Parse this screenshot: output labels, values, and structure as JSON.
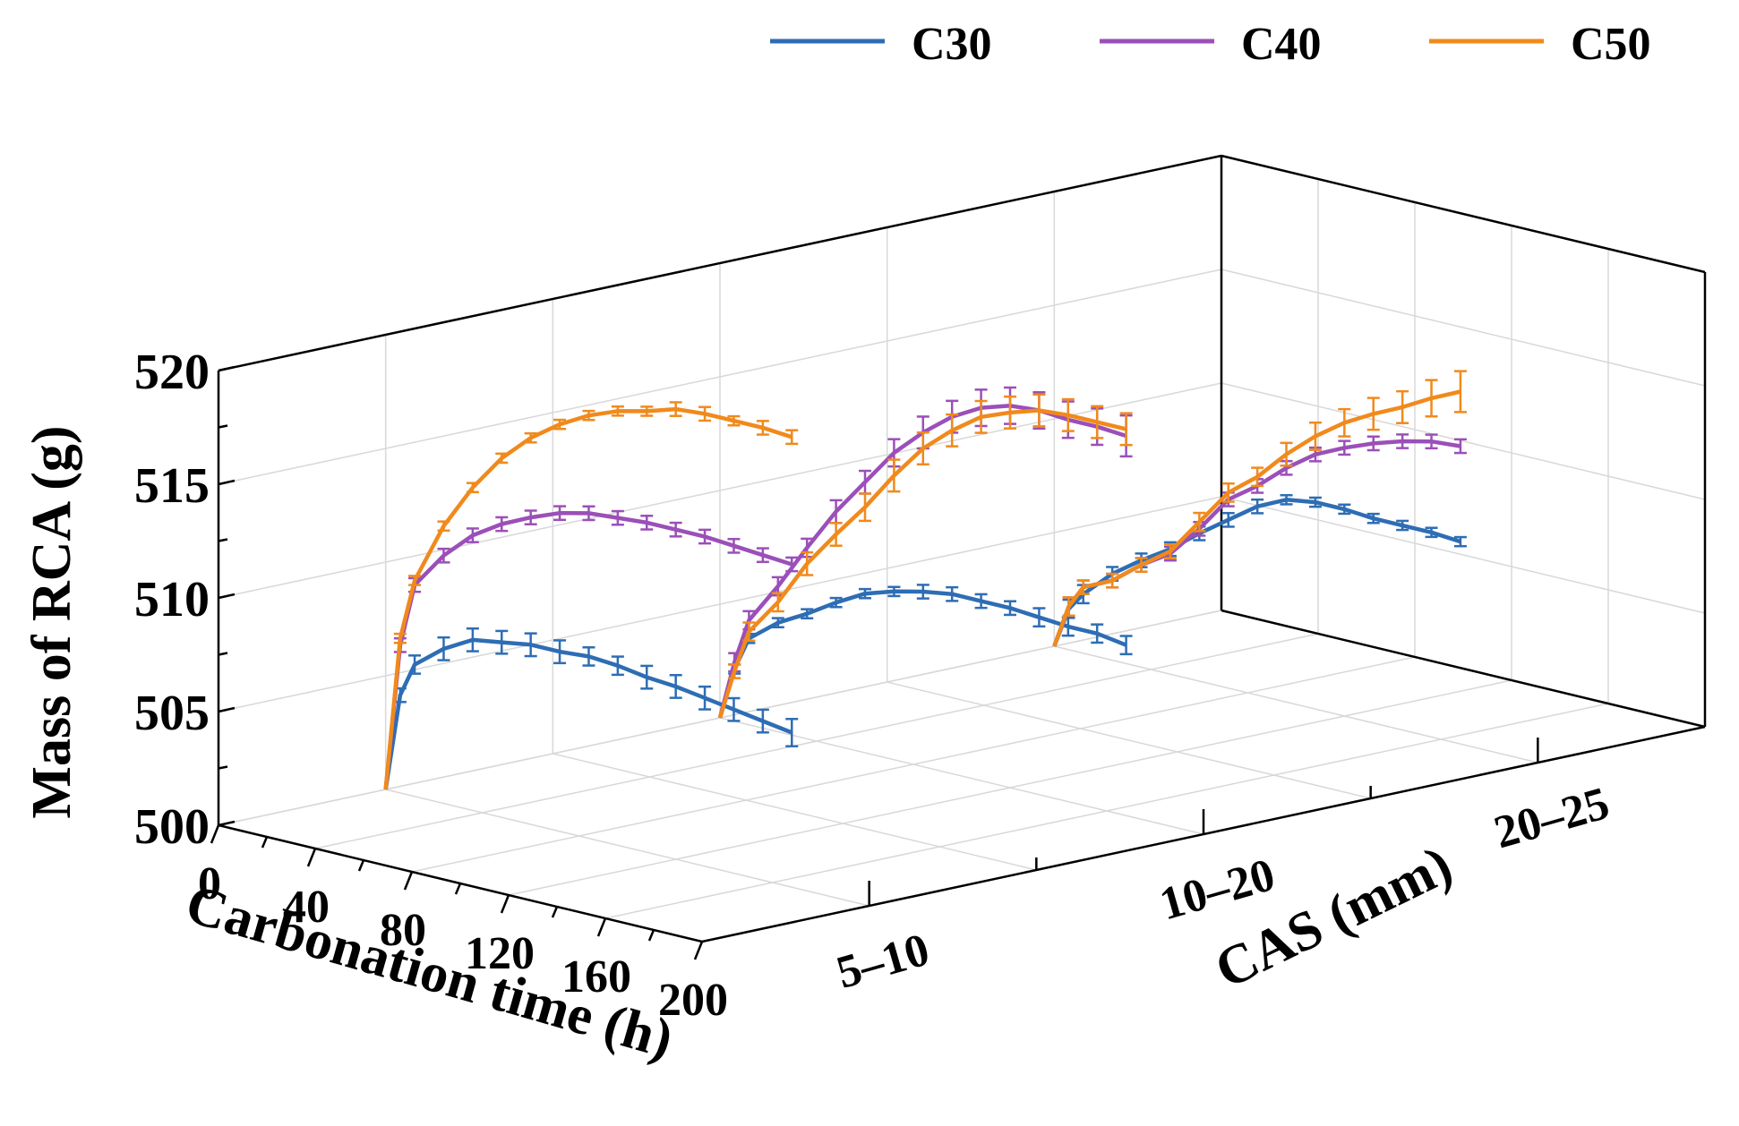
{
  "chart_data": {
    "type": "line",
    "subtype": "3d-line-with-error-bars",
    "title": "",
    "zlabel": "Mass of RCA (g)",
    "xlabel": "Carbonation time (h)",
    "ylabel": "CAS (mm)",
    "zlim": [
      500,
      520
    ],
    "xlim": [
      0,
      200
    ],
    "z_ticks": [
      "500",
      "505",
      "510",
      "515",
      "520"
    ],
    "x_ticks": [
      "0",
      "40",
      "80",
      "120",
      "160",
      "200"
    ],
    "x_tick_values": [
      0,
      40,
      80,
      120,
      160,
      200
    ],
    "categories": [
      "5–10",
      "10–20",
      "20–25"
    ],
    "legend": [
      "C30",
      "C40",
      "C50"
    ],
    "legend_position": "top",
    "colors": {
      "C30": "#2e6db4",
      "C40": "#9b4fb8",
      "C50": "#f08a1c"
    },
    "x": [
      0,
      6,
      12,
      24,
      36,
      48,
      60,
      72,
      84,
      96,
      108,
      120,
      132,
      144,
      156,
      168
    ],
    "groups": [
      {
        "cas": "5–10",
        "series": [
          {
            "name": "C30",
            "values": [
              500.0,
              504.3,
              505.8,
              506.8,
              507.5,
              507.7,
              507.9,
              507.9,
              508.0,
              507.9,
              507.7,
              507.6,
              507.4,
              507.2,
              507.0,
              506.8
            ],
            "errors": [
              0.05,
              0.3,
              0.4,
              0.5,
              0.5,
              0.5,
              0.5,
              0.5,
              0.4,
              0.4,
              0.5,
              0.5,
              0.5,
              0.5,
              0.5,
              0.6
            ]
          },
          {
            "name": "C40",
            "values": [
              500.0,
              506.5,
              509.3,
              510.9,
              512.1,
              512.9,
              513.5,
              514.0,
              514.3,
              514.4,
              514.5,
              514.5,
              514.5,
              514.4,
              514.3,
              514.2
            ],
            "errors": [
              0.05,
              0.3,
              0.3,
              0.3,
              0.3,
              0.3,
              0.3,
              0.3,
              0.3,
              0.3,
              0.3,
              0.3,
              0.3,
              0.3,
              0.3,
              0.3
            ]
          },
          {
            "name": "C50",
            "values": [
              500.0,
              506.8,
              509.5,
              512.2,
              514.2,
              515.8,
              517.0,
              517.9,
              518.6,
              519.1,
              519.4,
              519.8,
              519.9,
              519.9,
              519.9,
              519.8
            ],
            "errors": [
              0.05,
              0.2,
              0.2,
              0.2,
              0.2,
              0.2,
              0.2,
              0.2,
              0.2,
              0.2,
              0.2,
              0.3,
              0.3,
              0.2,
              0.3,
              0.3
            ]
          }
        ]
      },
      {
        "cas": "10–20",
        "series": [
          {
            "name": "C30",
            "values": [
              500.0,
              502.3,
              503.8,
              504.8,
              505.5,
              506.3,
              507.0,
              507.4,
              507.7,
              507.9,
              507.9,
              507.9,
              507.8,
              507.7,
              507.7,
              507.5
            ],
            "errors": [
              0.05,
              0.2,
              0.2,
              0.2,
              0.2,
              0.2,
              0.2,
              0.2,
              0.3,
              0.3,
              0.3,
              0.3,
              0.4,
              0.4,
              0.4,
              0.4
            ]
          },
          {
            "name": "C40",
            "values": [
              500.0,
              502.6,
              504.6,
              506.4,
              508.4,
              510.3,
              511.9,
              513.5,
              514.7,
              515.7,
              516.4,
              516.8,
              516.9,
              516.8,
              516.8,
              516.7
            ],
            "errors": [
              0.05,
              0.4,
              0.4,
              0.4,
              0.4,
              0.5,
              0.5,
              0.6,
              0.7,
              0.7,
              0.8,
              0.8,
              0.8,
              0.8,
              0.8,
              0.9
            ]
          },
          {
            "name": "C50",
            "values": [
              500.0,
              502.2,
              504.1,
              505.7,
              507.7,
              509.3,
              510.8,
              512.5,
              514.0,
              515.1,
              516.0,
              516.5,
              516.9,
              517.0,
              517.0,
              517.0
            ],
            "errors": [
              0.05,
              0.3,
              0.4,
              0.4,
              0.5,
              0.5,
              0.6,
              0.7,
              0.7,
              0.7,
              0.7,
              0.7,
              0.7,
              0.7,
              0.7,
              0.7
            ]
          }
        ]
      },
      {
        "cas": "20–25",
        "series": [
          {
            "name": "C30",
            "values": [
              500.0,
              501.8,
              502.6,
              503.8,
              504.7,
              505.5,
              506.5,
              507.4,
              508.3,
              508.9,
              509.1,
              509.1,
              509.0,
              509.0,
              509.0,
              508.9
            ],
            "errors": [
              0.05,
              0.4,
              0.4,
              0.3,
              0.3,
              0.3,
              0.3,
              0.3,
              0.3,
              0.2,
              0.2,
              0.2,
              0.2,
              0.2,
              0.2,
              0.2
            ]
          },
          {
            "name": "C40",
            "values": [
              500.0,
              501.9,
              502.9,
              503.5,
              504.5,
              505.3,
              506.7,
              508.3,
              509.2,
              510.3,
              511.2,
              511.8,
              512.3,
              512.7,
              513.0,
              513.1
            ],
            "errors": [
              0.05,
              0.4,
              0.3,
              0.3,
              0.3,
              0.3,
              0.3,
              0.3,
              0.3,
              0.3,
              0.3,
              0.3,
              0.3,
              0.3,
              0.3,
              0.3
            ]
          },
          {
            "name": "C50",
            "values": [
              500.0,
              501.9,
              502.9,
              503.5,
              504.5,
              505.4,
              507.0,
              508.6,
              509.6,
              510.9,
              512.0,
              512.9,
              513.6,
              514.2,
              514.9,
              515.5
            ],
            "errors": [
              0.05,
              0.4,
              0.3,
              0.3,
              0.3,
              0.3,
              0.4,
              0.4,
              0.4,
              0.5,
              0.6,
              0.6,
              0.7,
              0.7,
              0.8,
              0.9
            ]
          }
        ]
      }
    ]
  }
}
